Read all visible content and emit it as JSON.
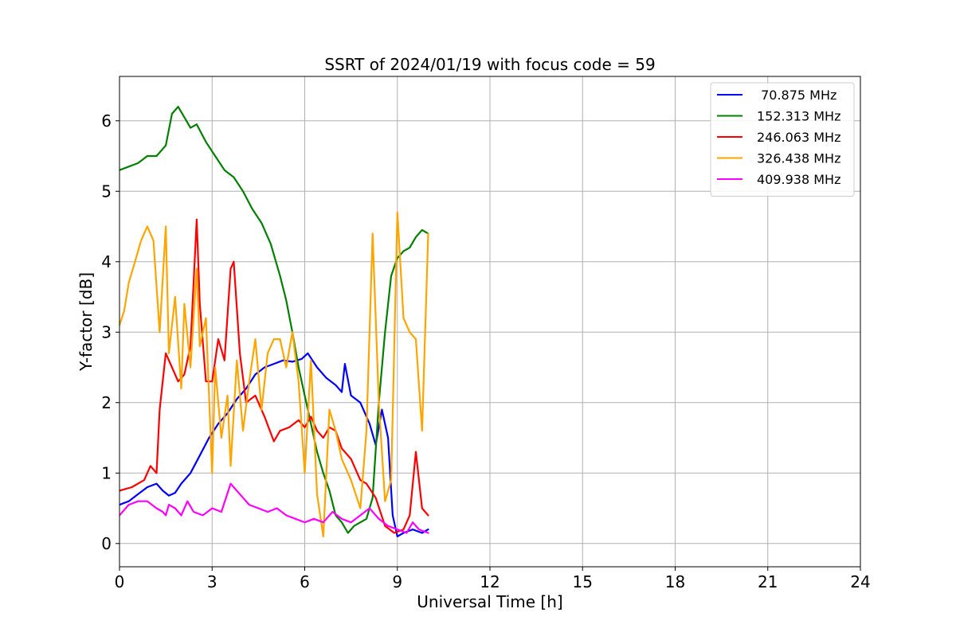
{
  "chart_data": {
    "type": "line",
    "title": "SSRT of 2024/01/19 with focus code = 59",
    "xlabel": "Universal Time [h]",
    "ylabel": "Y-factor [dB]",
    "xlim": [
      0,
      24
    ],
    "ylim": [
      -0.33,
      6.63
    ],
    "xticks": [
      0,
      3,
      6,
      9,
      12,
      15,
      18,
      21,
      24
    ],
    "yticks": [
      0,
      1,
      2,
      3,
      4,
      5,
      6
    ],
    "grid": true,
    "legend_position": "top-right",
    "series": [
      {
        "name": " 70.875 MHz",
        "color": "#0000ff",
        "x": [
          0,
          0.3,
          0.6,
          0.9,
          1.2,
          1.4,
          1.6,
          1.8,
          2.0,
          2.3,
          2.6,
          2.9,
          3.2,
          3.5,
          3.8,
          4.1,
          4.4,
          4.7,
          5.0,
          5.3,
          5.6,
          5.9,
          6.1,
          6.4,
          6.7,
          7.0,
          7.2,
          7.3,
          7.5,
          7.8,
          8.1,
          8.3,
          8.5,
          8.7,
          8.85,
          9.0,
          9.2,
          9.5,
          9.8,
          10.0
        ],
        "y": [
          0.55,
          0.6,
          0.7,
          0.8,
          0.85,
          0.75,
          0.68,
          0.72,
          0.85,
          1.0,
          1.25,
          1.5,
          1.7,
          1.85,
          2.05,
          2.2,
          2.4,
          2.5,
          2.55,
          2.6,
          2.58,
          2.62,
          2.7,
          2.5,
          2.35,
          2.25,
          2.15,
          2.55,
          2.1,
          2.0,
          1.7,
          1.4,
          1.9,
          1.5,
          0.4,
          0.1,
          0.15,
          0.2,
          0.15,
          0.2
        ]
      },
      {
        "name": "152.313 MHz",
        "color": "#008000",
        "x": [
          0,
          0.3,
          0.6,
          0.9,
          1.2,
          1.5,
          1.7,
          1.9,
          2.1,
          2.3,
          2.5,
          2.8,
          3.1,
          3.4,
          3.7,
          4.0,
          4.3,
          4.6,
          4.9,
          5.2,
          5.4,
          5.6,
          5.8,
          6.0,
          6.2,
          6.4,
          6.6,
          6.8,
          7.0,
          7.2,
          7.4,
          7.6,
          7.8,
          8.0,
          8.2,
          8.4,
          8.6,
          8.8,
          9.0,
          9.2,
          9.4,
          9.6,
          9.8,
          10.0
        ],
        "y": [
          5.3,
          5.35,
          5.4,
          5.5,
          5.5,
          5.65,
          6.1,
          6.2,
          6.05,
          5.9,
          5.95,
          5.7,
          5.5,
          5.3,
          5.2,
          5.0,
          4.75,
          4.55,
          4.25,
          3.8,
          3.45,
          3.0,
          2.5,
          2.1,
          1.7,
          1.3,
          1.0,
          0.75,
          0.4,
          0.3,
          0.15,
          0.25,
          0.3,
          0.35,
          0.65,
          2.0,
          3.0,
          3.8,
          4.05,
          4.15,
          4.2,
          4.35,
          4.45,
          4.4
        ]
      },
      {
        "name": "246.063 MHz",
        "color": "#ff0000",
        "x": [
          0,
          0.4,
          0.8,
          1.0,
          1.2,
          1.3,
          1.5,
          1.7,
          1.9,
          2.1,
          2.3,
          2.5,
          2.6,
          2.8,
          3.0,
          3.2,
          3.4,
          3.6,
          3.7,
          3.9,
          4.1,
          4.4,
          4.7,
          5.0,
          5.2,
          5.5,
          5.8,
          6.0,
          6.2,
          6.4,
          6.6,
          6.8,
          7.0,
          7.2,
          7.5,
          7.8,
          8.0,
          8.3,
          8.6,
          8.9,
          9.2,
          9.4,
          9.6,
          9.8,
          10.0
        ],
        "y": [
          0.75,
          0.8,
          0.9,
          1.1,
          1.0,
          1.9,
          2.7,
          2.5,
          2.3,
          2.4,
          2.8,
          4.6,
          3.4,
          2.3,
          2.3,
          2.9,
          2.6,
          3.9,
          4.0,
          2.7,
          2.0,
          2.1,
          1.8,
          1.45,
          1.6,
          1.65,
          1.75,
          1.65,
          1.8,
          1.6,
          1.5,
          1.65,
          1.6,
          1.35,
          1.2,
          0.9,
          0.85,
          0.65,
          0.25,
          0.15,
          0.2,
          0.4,
          1.3,
          0.5,
          0.4
        ]
      },
      {
        "name": "326.438 MHz",
        "color": "#ffa500",
        "x": [
          0,
          0.15,
          0.3,
          0.5,
          0.7,
          0.9,
          1.1,
          1.3,
          1.5,
          1.6,
          1.8,
          2.0,
          2.1,
          2.3,
          2.5,
          2.6,
          2.8,
          3.0,
          3.1,
          3.3,
          3.5,
          3.6,
          3.8,
          4.0,
          4.2,
          4.4,
          4.6,
          4.8,
          5.0,
          5.2,
          5.4,
          5.6,
          5.8,
          6.0,
          6.2,
          6.4,
          6.6,
          6.8,
          7.0,
          7.2,
          7.5,
          7.8,
          8.0,
          8.2,
          8.4,
          8.6,
          8.8,
          9.0,
          9.2,
          9.4,
          9.6,
          9.8,
          10.0
        ],
        "y": [
          3.1,
          3.3,
          3.7,
          4.0,
          4.3,
          4.5,
          4.3,
          3.0,
          4.5,
          2.7,
          3.5,
          2.2,
          3.4,
          2.5,
          3.9,
          2.8,
          3.2,
          1.0,
          2.5,
          1.5,
          2.1,
          1.1,
          2.6,
          1.6,
          2.3,
          2.9,
          1.9,
          2.7,
          2.9,
          2.9,
          2.5,
          3.0,
          2.3,
          1.0,
          2.6,
          0.7,
          0.1,
          1.9,
          1.6,
          1.2,
          0.9,
          0.5,
          1.6,
          4.4,
          2.0,
          0.6,
          0.9,
          4.7,
          3.2,
          3.0,
          2.9,
          1.6,
          4.4
        ]
      },
      {
        "name": "409.938 MHz",
        "color": "#ff00ff",
        "x": [
          0,
          0.3,
          0.6,
          0.9,
          1.2,
          1.4,
          1.5,
          1.6,
          1.8,
          2.0,
          2.2,
          2.4,
          2.7,
          3.0,
          3.3,
          3.6,
          3.9,
          4.2,
          4.5,
          4.8,
          5.1,
          5.4,
          5.7,
          6.0,
          6.3,
          6.6,
          6.9,
          7.2,
          7.5,
          7.8,
          8.1,
          8.4,
          8.7,
          9.0,
          9.3,
          9.5,
          9.7,
          10.0
        ],
        "y": [
          0.4,
          0.55,
          0.6,
          0.6,
          0.5,
          0.45,
          0.4,
          0.55,
          0.5,
          0.4,
          0.6,
          0.45,
          0.4,
          0.5,
          0.45,
          0.85,
          0.7,
          0.55,
          0.5,
          0.45,
          0.5,
          0.4,
          0.35,
          0.3,
          0.35,
          0.3,
          0.45,
          0.35,
          0.3,
          0.4,
          0.5,
          0.35,
          0.25,
          0.2,
          0.15,
          0.3,
          0.2,
          0.15
        ]
      }
    ]
  }
}
